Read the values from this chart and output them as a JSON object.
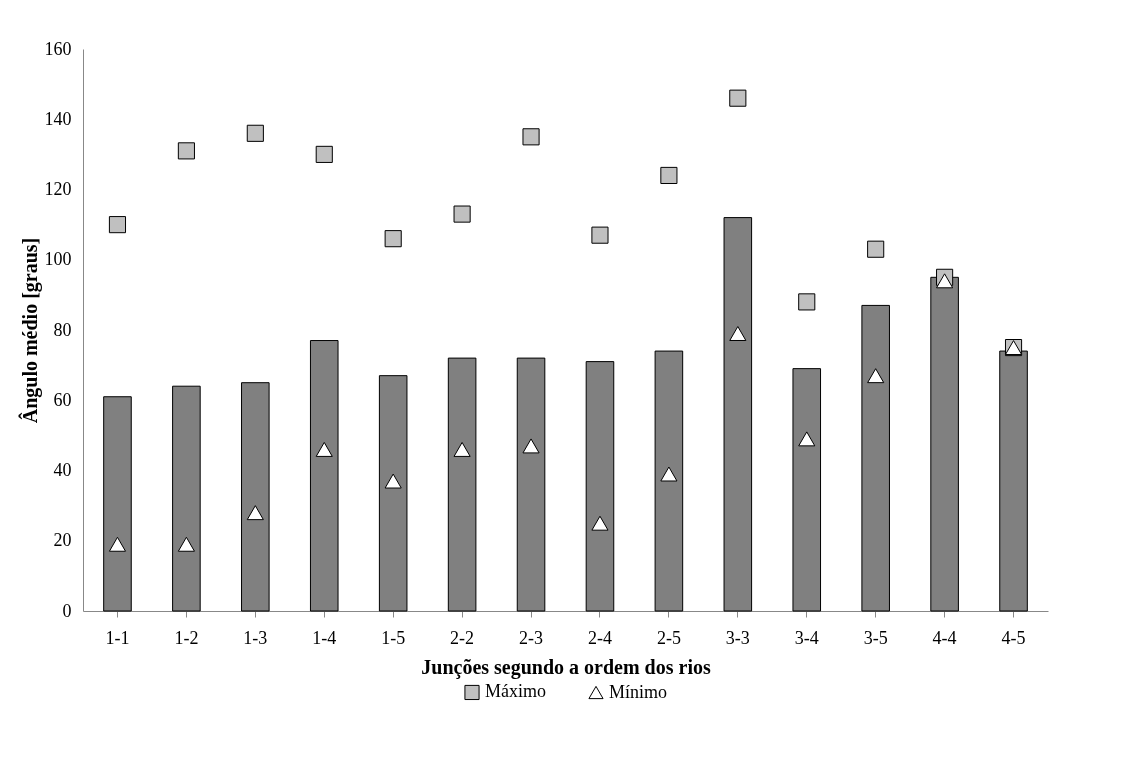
{
  "chart_data": {
    "type": "bar",
    "xlabel": "Junções segundo a ordem dos rios",
    "ylabel": "Ângulo médio [graus]",
    "categories": [
      "1-1",
      "1-2",
      "1-3",
      "1-4",
      "1-5",
      "2-2",
      "2-3",
      "2-4",
      "2-5",
      "3-3",
      "3-4",
      "3-5",
      "4-4",
      "4-5"
    ],
    "series": [
      {
        "color": "#808080",
        "values": [
          61,
          64,
          65,
          77,
          67,
          72,
          72,
          71,
          74,
          112,
          69,
          87,
          95,
          74
        ]
      },
      {
        "type": "scatter",
        "name": "Máximo",
        "color": "#c0c0c0",
        "marker": "square",
        "values": [
          110,
          131,
          136,
          130,
          106,
          113,
          135,
          107,
          124,
          146,
          88,
          103,
          95,
          75
        ]
      },
      {
        "type": "scatter",
        "name": "Mínimo",
        "color": "#ffffff",
        "marker": "triangle",
        "values": [
          19,
          19,
          28,
          46,
          37,
          46,
          47,
          25,
          39,
          79,
          49,
          67,
          94,
          75
        ]
      }
    ],
    "ylim": [
      0,
      160
    ],
    "yticks": [
      0,
      20,
      40,
      60,
      80,
      100,
      120,
      140,
      160
    ],
    "grid": false,
    "legend": "bottom"
  }
}
